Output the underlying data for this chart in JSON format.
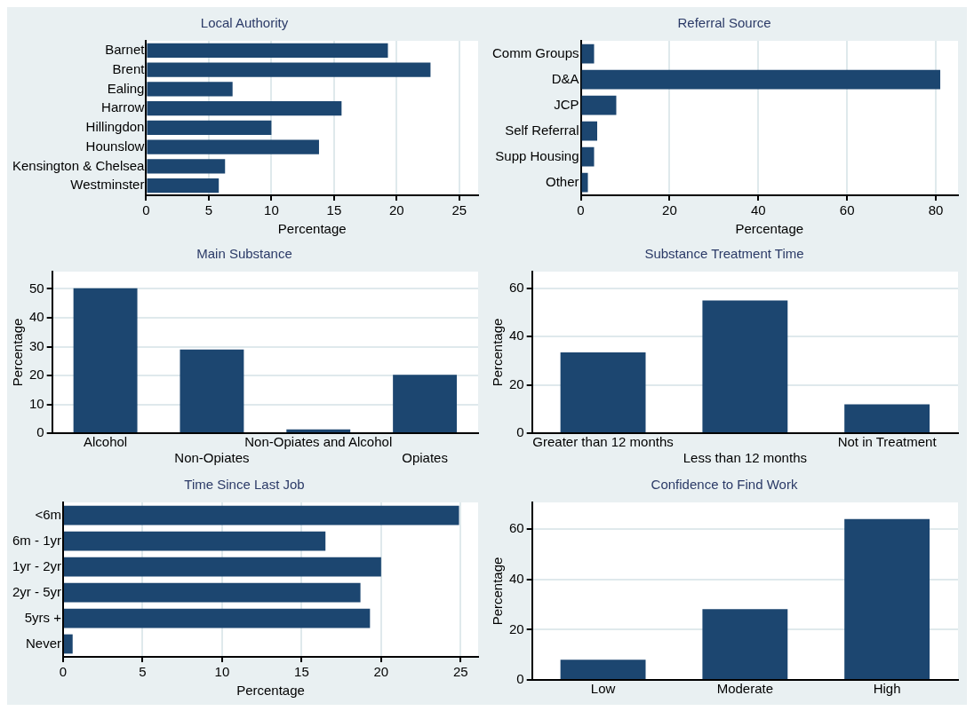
{
  "chart_data": [
    {
      "type": "bar",
      "orientation": "horizontal",
      "title": "Local Authority",
      "xlabel": "Percentage",
      "categories": [
        "Barnet",
        "Brent",
        "Ealing",
        "Harrow",
        "Hillingdon",
        "Hounslow",
        "Kensington & Chelsea",
        "Westminster"
      ],
      "values": [
        19.3,
        22.7,
        6.9,
        15.6,
        10.0,
        13.8,
        6.3,
        5.8
      ],
      "color": "#1c4670",
      "xlim": [
        0,
        26.5
      ],
      "xticks": [
        0,
        5,
        10,
        15,
        20,
        25
      ],
      "grid": "x"
    },
    {
      "type": "bar",
      "orientation": "horizontal",
      "title": "Referral Source",
      "xlabel": "Percentage",
      "categories": [
        "Comm Groups",
        "D&A",
        "JCP",
        "Self Referral",
        "Supp Housing",
        "Other"
      ],
      "values": [
        3.0,
        81,
        8,
        3.7,
        3.0,
        1.6
      ],
      "color": "#1c4670",
      "xlim": [
        0,
        85
      ],
      "xticks": [
        0,
        20,
        40,
        60,
        80
      ],
      "grid": "x"
    },
    {
      "type": "bar",
      "title": "Main Substance",
      "ylabel": "Percentage",
      "categories": [
        "Alcohol",
        "Non-Opiates",
        "Non-Opiates and Alcohol",
        "Opiates"
      ],
      "values": [
        50.2,
        29,
        1.3,
        20.2
      ],
      "color": "#1c4670",
      "ylim": [
        0,
        56
      ],
      "yticks": [
        0,
        10,
        20,
        30,
        40,
        50
      ],
      "grid": "y"
    },
    {
      "type": "bar",
      "title": "Substance Treatment Time",
      "ylabel": "Percentage",
      "categories": [
        "Greater than 12 months",
        "Less than 12 months",
        "Not in Treatment"
      ],
      "values": [
        33.5,
        55,
        12
      ],
      "color": "#1c4670",
      "ylim": [
        0,
        67
      ],
      "yticks": [
        0,
        20,
        40,
        60
      ],
      "grid": "y"
    },
    {
      "type": "bar",
      "orientation": "horizontal",
      "title": "Time Since Last Job",
      "xlabel": "Percentage",
      "categories": [
        "<6m",
        "6m - 1yr",
        "1yr - 2yr",
        "2yr - 5yr",
        "5yrs +",
        "Never"
      ],
      "values": [
        24.9,
        16.5,
        20.0,
        18.7,
        19.3,
        0.6
      ],
      "color": "#1c4670",
      "xlim": [
        0,
        26.1
      ],
      "xticks": [
        0,
        5,
        10,
        15,
        20,
        25
      ],
      "grid": "x"
    },
    {
      "type": "bar",
      "title": "Confidence to Find Work",
      "ylabel": "Percentage",
      "categories": [
        "Low",
        "Moderate",
        "High"
      ],
      "values": [
        8,
        28.2,
        64.1
      ],
      "color": "#1c4670",
      "ylim": [
        0,
        70.7
      ],
      "yticks": [
        0,
        20,
        40,
        60
      ],
      "grid": "y"
    }
  ]
}
